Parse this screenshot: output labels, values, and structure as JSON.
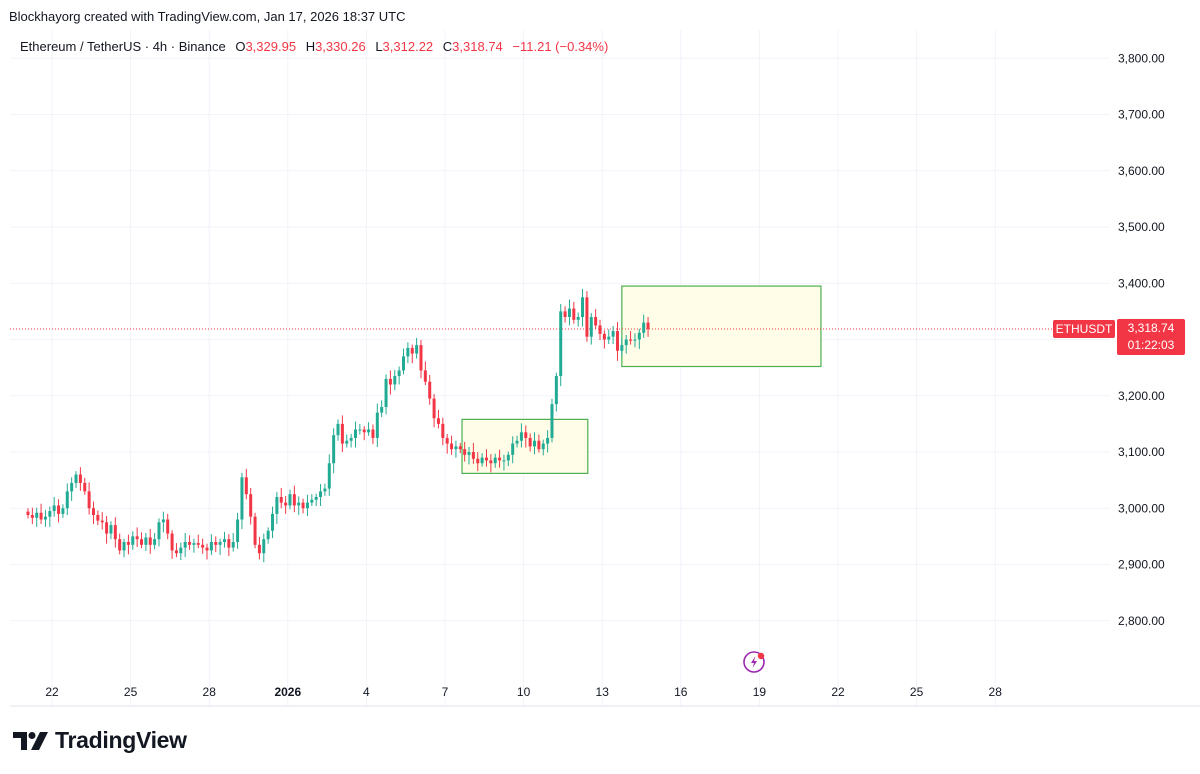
{
  "header": {
    "attribution": "Blockhayorg created with TradingView.com, Jan 17, 2026 18:37 UTC"
  },
  "legend": {
    "symbol": "Ethereum / TetherUS · 4h · Binance",
    "o_label": "O",
    "o_value": "3,329.95",
    "h_label": "H",
    "h_value": "3,330.26",
    "l_label": "L",
    "l_value": "3,312.22",
    "c_label": "C",
    "c_value": "3,318.74",
    "change": "−11.21 (−0.34%)"
  },
  "price_tag": {
    "symbol": "ETHUSDT",
    "price": "3,318.74",
    "countdown": "01:22:03"
  },
  "footer": {
    "brand": "TradingView"
  },
  "colors": {
    "up": "#22ab94",
    "down": "#f23645",
    "grid": "#f0f3fa",
    "zone_fill": "#fffde8",
    "zone_stroke": "#4caf50",
    "axis_text": "#131722"
  },
  "chart_data": {
    "type": "candlestick",
    "interval": "4h",
    "y_axis": {
      "min": 2700,
      "max": 3850,
      "ticks": [
        2800,
        2900,
        3000,
        3100,
        3200,
        3300,
        3400,
        3500,
        3600,
        3700,
        3800
      ],
      "tick_labels": [
        "2,800.00",
        "2,900.00",
        "3,000.00",
        "3,100.00",
        "3,200.00",
        "3,300.00",
        "3,400.00",
        "3,500.00",
        "3,600.00",
        "3,700.00",
        "3,800.00"
      ]
    },
    "x_axis": {
      "day_start": 21,
      "day_end": 29.85,
      "ticks": [
        {
          "day": 22,
          "label": "22"
        },
        {
          "day": 25,
          "label": "25"
        },
        {
          "day": 28,
          "label": "28"
        },
        {
          "day": 31,
          "label": "2026",
          "bold": true
        },
        {
          "day": 34,
          "label": "4"
        },
        {
          "day": 37,
          "label": "7"
        },
        {
          "day": 40,
          "label": "10"
        },
        {
          "day": 43,
          "label": "13"
        },
        {
          "day": 46,
          "label": "16"
        },
        {
          "day": 49,
          "label": "19"
        },
        {
          "day": 52,
          "label": "22"
        },
        {
          "day": 55,
          "label": "25"
        },
        {
          "day": 58,
          "label": "28"
        }
      ]
    },
    "current_price": 3318.74,
    "zones": [
      {
        "day_from": 37.65,
        "day_to": 42.45,
        "low": 3062,
        "high": 3158
      },
      {
        "day_from": 43.75,
        "day_to": 51.35,
        "low": 3252,
        "high": 3395
      }
    ],
    "closes": [
      2988,
      2983,
      2992,
      2980,
      2985,
      2995,
      3005,
      2990,
      3000,
      3030,
      3045,
      3060,
      3045,
      3030,
      3000,
      2988,
      2978,
      2975,
      2955,
      2970,
      2945,
      2925,
      2940,
      2935,
      2950,
      2945,
      2935,
      2948,
      2935,
      2945,
      2975,
      2980,
      2955,
      2925,
      2920,
      2930,
      2940,
      2935,
      2938,
      2935,
      2930,
      2925,
      2940,
      2935,
      2940,
      2945,
      2930,
      2940,
      2980,
      3055,
      3025,
      2985,
      2935,
      2920,
      2945,
      2960,
      2990,
      3020,
      3010,
      3005,
      3025,
      3005,
      3010,
      3000,
      3010,
      3015,
      3020,
      3030,
      3035,
      3080,
      3130,
      3150,
      3115,
      3120,
      3125,
      3140,
      3140,
      3135,
      3140,
      3125,
      3170,
      3180,
      3230,
      3220,
      3235,
      3245,
      3270,
      3285,
      3275,
      3290,
      3245,
      3225,
      3195,
      3160,
      3150,
      3125,
      3115,
      3105,
      3110,
      3105,
      3095,
      3100,
      3088,
      3080,
      3090,
      3085,
      3080,
      3090,
      3085,
      3085,
      3095,
      3115,
      3120,
      3135,
      3125,
      3110,
      3120,
      3105,
      3115,
      3125,
      3185,
      3235,
      3350,
      3340,
      3355,
      3335,
      3340,
      3375,
      3305,
      3340,
      3325,
      3310,
      3300,
      3305,
      3315,
      3280,
      3290,
      3300,
      3298,
      3300,
      3312,
      3330,
      3318.74
    ]
  }
}
